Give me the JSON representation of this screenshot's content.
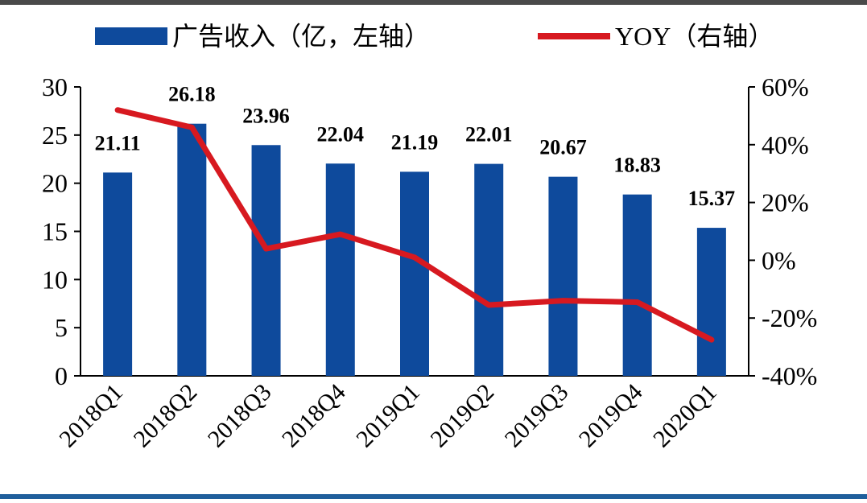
{
  "chart_data": {
    "type": "bar",
    "categories": [
      "2018Q1",
      "2018Q2",
      "2018Q3",
      "2018Q4",
      "2019Q1",
      "2019Q2",
      "2019Q3",
      "2019Q4",
      "2020Q1"
    ],
    "series": [
      {
        "name": "广告收入（亿，左轴）",
        "type": "bar",
        "axis": "left",
        "color": "#0e4a9c",
        "values": [
          21.11,
          26.18,
          23.96,
          22.04,
          21.19,
          22.01,
          20.67,
          18.83,
          15.37
        ],
        "labels": [
          "21.11",
          "26.18",
          "23.96",
          "22.04",
          "21.19",
          "22.01",
          "20.67",
          "18.83",
          "15.37"
        ]
      },
      {
        "name": "YOY（右轴）",
        "type": "line",
        "axis": "right",
        "color": "#d71920",
        "values": [
          0.52,
          0.46,
          0.04,
          0.09,
          0.01,
          -0.155,
          -0.14,
          -0.145,
          -0.275
        ]
      }
    ],
    "y_left": {
      "min": 0,
      "max": 30,
      "ticks": [
        "0",
        "5",
        "10",
        "15",
        "20",
        "25",
        "30"
      ]
    },
    "y_right": {
      "min": -0.4,
      "max": 0.6,
      "ticks": [
        "-40%",
        "-20%",
        "0%",
        "20%",
        "40%",
        "60%"
      ]
    },
    "legend_position": "top",
    "grid": false
  }
}
